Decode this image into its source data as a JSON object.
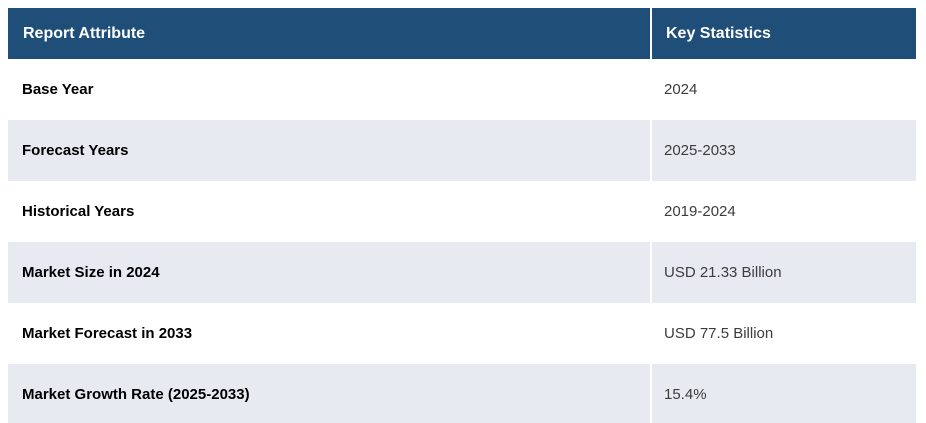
{
  "table": {
    "columns": [
      "Report Attribute",
      "Key Statistics"
    ],
    "rows": [
      {
        "attribute": "Base Year",
        "value": "2024"
      },
      {
        "attribute": "Forecast Years",
        "value": "2025-2033"
      },
      {
        "attribute": "Historical Years",
        "value": "2019-2024"
      },
      {
        "attribute": "Market Size in 2024",
        "value": "USD 21.33 Billion"
      },
      {
        "attribute": "Market Forecast in 2033",
        "value": "USD 77.5 Billion"
      },
      {
        "attribute": "Market Growth Rate (2025-2033)",
        "value": "15.4%"
      }
    ],
    "colors": {
      "header_bg": "#1f4e79",
      "header_text": "#ffffff",
      "row_bg": "#ffffff",
      "row_alt_bg": "#e8eaf2",
      "attribute_text": "#000000",
      "value_text": "#3c3c3c"
    }
  }
}
